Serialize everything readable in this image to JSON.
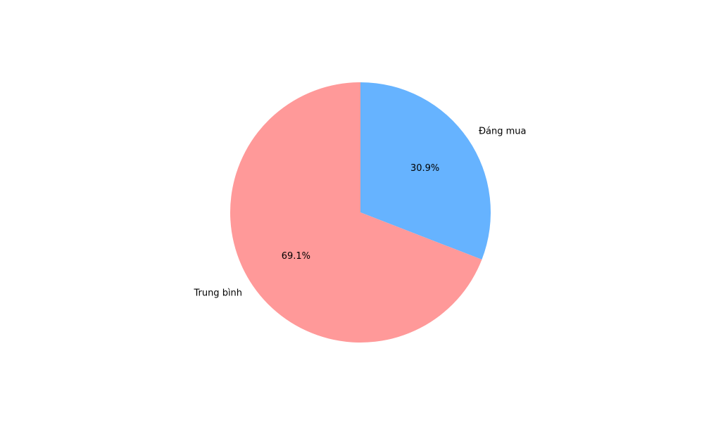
{
  "chart_data": {
    "type": "pie",
    "title": "",
    "slices": [
      {
        "label": "Đáng mua",
        "value": 30.9,
        "pct_label": "30.9%",
        "color": "#66b3ff"
      },
      {
        "label": "Trung bình",
        "value": 69.1,
        "pct_label": "69.1%",
        "color": "#ff9999"
      }
    ],
    "start_angle_deg": 90,
    "direction": "clockwise"
  }
}
